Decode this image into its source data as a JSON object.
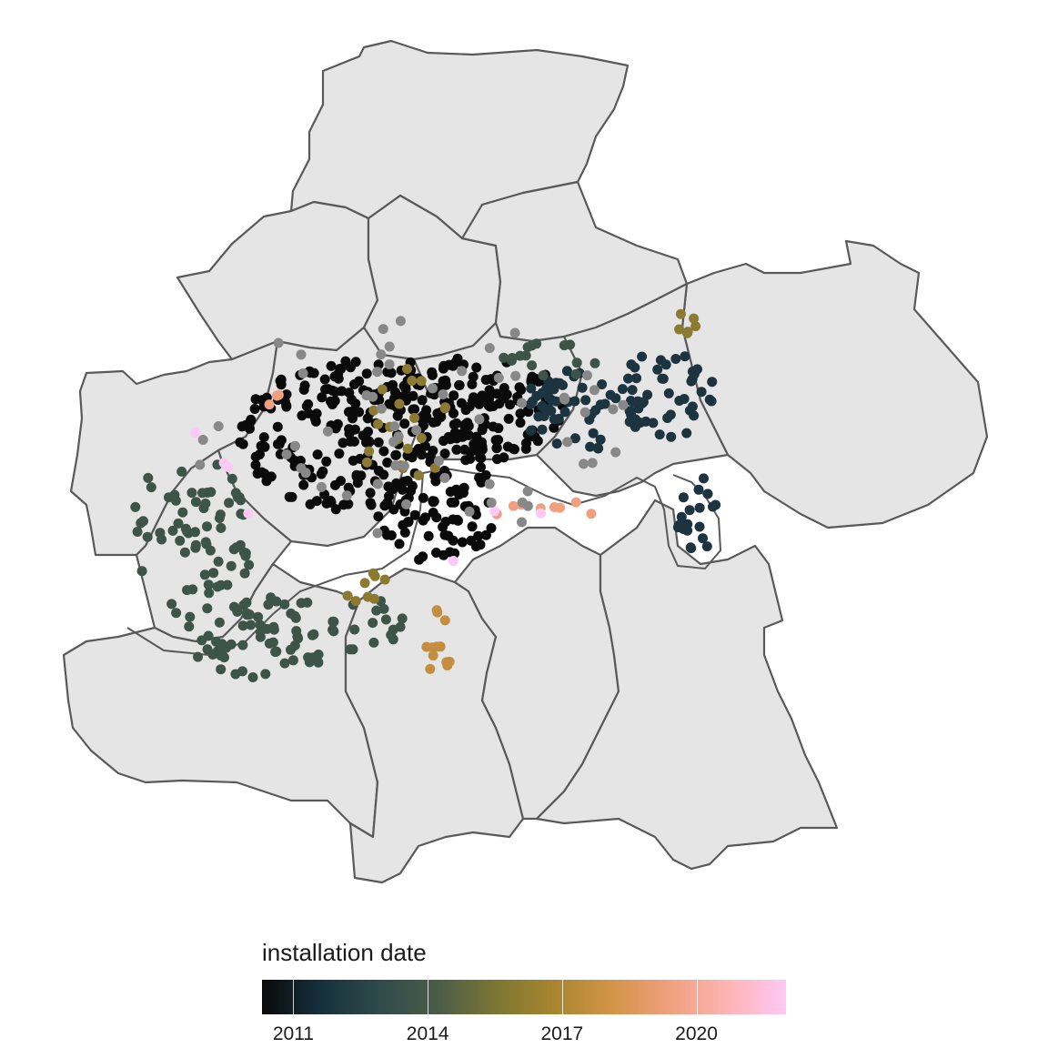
{
  "legend": {
    "title": "installation date",
    "ticks": [
      {
        "label": "2011",
        "value": 2011
      },
      {
        "label": "2014",
        "value": 2014
      },
      {
        "label": "2017",
        "value": 2017
      },
      {
        "label": "2020",
        "value": 2020
      }
    ],
    "scale_min": 2010.3,
    "scale_max": 2022.0,
    "colors": [
      "#0a0a0a",
      "#16303c",
      "#2f4a4a",
      "#4a5c48",
      "#7b7634",
      "#a8852e",
      "#d29447",
      "#f0a07e",
      "#fdb4b4",
      "#ffc8f6"
    ]
  },
  "map": {
    "boroughs": 13,
    "fill_color": "#e5e5e5",
    "border_color": "#595959",
    "other_color": "#888888"
  },
  "chart_data": {
    "type": "scatter",
    "description_of_points": "docking stations colored by installation year",
    "series": [
      {
        "name": "2010 stations",
        "color": "#0a0a0a",
        "approx_count": 420
      },
      {
        "name": "2012 stations",
        "color": "#1c3340",
        "approx_count": 110
      },
      {
        "name": "2013 stations",
        "color": "#3d5448",
        "approx_count": 180
      },
      {
        "name": "2015-2016 stations",
        "color": "#8c7a32",
        "approx_count": 45
      },
      {
        "name": "2017 stations",
        "color": "#c48d40",
        "approx_count": 14
      },
      {
        "name": "2018-2019 stations",
        "color": "#f0a07e",
        "approx_count": 12
      },
      {
        "name": "2021 stations",
        "color": "#ffc8f6",
        "approx_count": 5
      },
      {
        "name": "unknown date",
        "color": "#888888",
        "approx_count": 70
      }
    ]
  }
}
